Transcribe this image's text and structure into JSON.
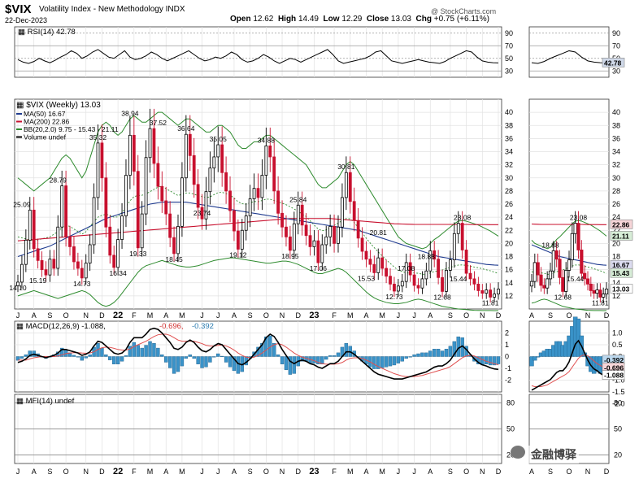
{
  "header": {
    "symbol": "$VIX",
    "name": "Volatility Index - New Methodology INDX",
    "date": "22-Dec-2023",
    "copyright": "@ StockCharts.com",
    "open_label": "Open",
    "open": "12.62",
    "high_label": "High",
    "high": "14.49",
    "low_label": "Low",
    "low": "12.29",
    "close_label": "Close",
    "close": "13.03",
    "chg_label": "Chg",
    "chg": "+0.75 (+6.11%)"
  },
  "colors": {
    "up": "#ffffff",
    "down": "#c8102e",
    "ma50": "#1f3b8f",
    "ma200": "#c8102e",
    "bb": "#2e8b2e",
    "macd_line": "#000000",
    "macd_signal": "#e05050",
    "hist": "#3a93c9",
    "grid": "#e2e2e2",
    "price_tag": "#c8102e"
  },
  "watermark": "金融博驿",
  "chart_data": [
    {
      "type": "line",
      "panel": "RSI",
      "label": "RSI(14) 42.78",
      "ylim": [
        20,
        100
      ],
      "y_ticks": [
        "90",
        "70",
        "50",
        "30"
      ],
      "right_tag": "42.78",
      "values": [
        48,
        44,
        42,
        45,
        50,
        46,
        43,
        47,
        52,
        56,
        62,
        58,
        50,
        54,
        60,
        64,
        58,
        52,
        50,
        56,
        62,
        52,
        48,
        50,
        54,
        60,
        56,
        50,
        46,
        50,
        54,
        58,
        62,
        56,
        50,
        46,
        48,
        52,
        50,
        54,
        60,
        56,
        48,
        44,
        46,
        50,
        56,
        52,
        46,
        42,
        46,
        50,
        48,
        44,
        48,
        52,
        56,
        60,
        64,
        56,
        46,
        42,
        44,
        46,
        48,
        50,
        54,
        60,
        62,
        54,
        46,
        44,
        42,
        44,
        46,
        48,
        46,
        44,
        43,
        42,
        45,
        50,
        54,
        58,
        62,
        60,
        52,
        46,
        44,
        43,
        42.78
      ]
    },
    {
      "type": "candlestick",
      "panel": "price",
      "label": "$VIX (Weekly) 13.03",
      "legend": [
        "MA(50) 16.67",
        "MA(200) 22.86",
        "BB(20,2.0) 9.75 - 15.43 - 21.11",
        "Volume undef"
      ],
      "ylim": [
        10,
        42
      ],
      "y_ticks": [
        "40",
        "38",
        "36",
        "34",
        "32",
        "30",
        "28",
        "26",
        "24",
        "22",
        "20",
        "18",
        "16",
        "14",
        "12"
      ],
      "x_labels": [
        "J",
        "A",
        "S",
        "O",
        "N",
        "D",
        "22",
        "F",
        "M",
        "A",
        "M",
        "J",
        "J",
        "A",
        "S",
        "O",
        "N",
        "D",
        "23",
        "F",
        "M",
        "A",
        "M",
        "J",
        "J",
        "A",
        "S",
        "O",
        "N",
        "D"
      ],
      "price_tags": [
        "22.86",
        "21.11",
        "16.67",
        "15.43",
        "13.03"
      ],
      "annotations": [
        {
          "text": "14.10",
          "x": 0,
          "y": 14.1
        },
        {
          "text": "25.09",
          "x": 1,
          "y": 25.09
        },
        {
          "text": "15.19",
          "x": 5,
          "y": 15.19
        },
        {
          "text": "28.79",
          "x": 10,
          "y": 28.79
        },
        {
          "text": "14.73",
          "x": 16,
          "y": 14.73
        },
        {
          "text": "35.32",
          "x": 20,
          "y": 35.32
        },
        {
          "text": "16.34",
          "x": 25,
          "y": 16.34
        },
        {
          "text": "38.94",
          "x": 28,
          "y": 38.94
        },
        {
          "text": "19.33",
          "x": 30,
          "y": 19.33
        },
        {
          "text": "37.52",
          "x": 35,
          "y": 37.52
        },
        {
          "text": "18.45",
          "x": 39,
          "y": 18.45
        },
        {
          "text": "36.64",
          "x": 42,
          "y": 36.64
        },
        {
          "text": "23.74",
          "x": 46,
          "y": 23.74
        },
        {
          "text": "35.05",
          "x": 50,
          "y": 35.05
        },
        {
          "text": "19.12",
          "x": 55,
          "y": 19.12
        },
        {
          "text": "34.88",
          "x": 62,
          "y": 34.88
        },
        {
          "text": "18.95",
          "x": 68,
          "y": 18.95
        },
        {
          "text": "25.84",
          "x": 70,
          "y": 25.84
        },
        {
          "text": "17.06",
          "x": 75,
          "y": 17.06
        },
        {
          "text": "30.81",
          "x": 82,
          "y": 30.81
        },
        {
          "text": "20.81",
          "x": 90,
          "y": 20.81
        },
        {
          "text": "15.53",
          "x": 87,
          "y": 15.53
        },
        {
          "text": "17.08",
          "x": 97,
          "y": 17.08
        },
        {
          "text": "12.73",
          "x": 94,
          "y": 12.73
        },
        {
          "text": "18.88",
          "x": 102,
          "y": 18.88
        },
        {
          "text": "12.68",
          "x": 106,
          "y": 12.68
        },
        {
          "text": "23.08",
          "x": 111,
          "y": 23.08
        },
        {
          "text": "15.44",
          "x": 110,
          "y": 15.44
        },
        {
          "text": "11.81",
          "x": 118,
          "y": 11.81
        }
      ],
      "closes": [
        14.1,
        16.8,
        20.5,
        25.09,
        19.2,
        17.4,
        16.0,
        15.19,
        17.6,
        16.2,
        22.5,
        28.79,
        21.0,
        19.5,
        17.2,
        16.2,
        14.73,
        17.0,
        19.8,
        27.0,
        35.32,
        30.0,
        22.5,
        18.2,
        16.34,
        20.6,
        24.2,
        30.4,
        36.5,
        31.0,
        19.33,
        24.5,
        33.1,
        37.52,
        32.2,
        28.7,
        26.5,
        24.5,
        20.9,
        18.45,
        22.6,
        30.0,
        36.64,
        33.4,
        29.0,
        25.5,
        23.74,
        27.9,
        31.5,
        33.2,
        35.05,
        30.8,
        28.0,
        25.0,
        21.9,
        19.12,
        22.0,
        24.2,
        26.8,
        28.4,
        27.0,
        30.4,
        34.88,
        33.2,
        28.0,
        24.6,
        22.5,
        21.0,
        18.95,
        23.0,
        25.84,
        22.8,
        21.2,
        19.5,
        20.4,
        17.06,
        19.8,
        21.0,
        22.6,
        20.0,
        22.5,
        27.0,
        30.81,
        26.4,
        23.5,
        20.81,
        18.8,
        17.6,
        16.8,
        15.53,
        17.8,
        16.2,
        15.0,
        13.8,
        12.73,
        13.5,
        14.2,
        17.08,
        15.2,
        13.6,
        13.2,
        14.6,
        15.8,
        18.88,
        17.6,
        14.8,
        12.68,
        15.9,
        17.5,
        21.5,
        23.08,
        19.0,
        15.44,
        14.6,
        13.8,
        12.8,
        12.4,
        12.9,
        11.81,
        12.28,
        13.03
      ],
      "ma50": [
        18.0,
        18.2,
        18.4,
        18.6,
        18.8,
        19.0,
        19.2,
        19.4,
        19.6,
        19.9,
        20.2,
        20.5,
        20.8,
        21.1,
        21.4,
        21.7,
        22.0,
        22.3,
        22.6,
        22.9,
        23.2,
        23.5,
        23.8,
        24.0,
        24.2,
        24.4,
        24.6,
        24.8,
        25.0,
        25.2,
        25.4,
        25.6,
        25.8,
        26.0,
        26.1,
        26.2,
        26.3,
        26.3,
        26.3,
        26.3,
        26.3,
        26.3,
        26.3,
        26.2,
        26.1,
        26.0,
        25.9,
        25.8,
        25.7,
        25.6,
        25.5,
        25.4,
        25.3,
        25.2,
        25.1,
        25.0,
        24.9,
        24.8,
        24.7,
        24.6,
        24.5,
        24.4,
        24.3,
        24.2,
        24.1,
        24.0,
        23.9,
        23.8,
        23.7,
        23.6,
        23.5,
        23.4,
        23.3,
        23.2,
        23.1,
        23.0,
        22.9,
        22.8,
        22.7,
        22.6,
        22.5,
        22.4,
        22.3,
        22.2,
        22.1,
        22.0,
        21.8,
        21.6,
        21.4,
        21.2,
        21.0,
        20.8,
        20.6,
        20.4,
        20.2,
        20.0,
        19.8,
        19.6,
        19.4,
        19.2,
        19.0,
        18.8,
        18.6,
        18.4,
        18.2,
        18.0,
        17.9,
        17.8,
        17.7,
        17.6,
        17.5,
        17.4,
        17.3,
        17.2,
        17.1,
        17.0,
        16.9,
        16.8,
        16.75,
        16.7,
        16.67
      ],
      "ma200": [
        20.4,
        20.45,
        20.5,
        20.55,
        20.6,
        20.65,
        20.7,
        20.75,
        20.8,
        20.85,
        20.9,
        20.95,
        21.0,
        21.05,
        21.1,
        21.15,
        21.2,
        21.25,
        21.3,
        21.35,
        21.4,
        21.45,
        21.5,
        21.55,
        21.6,
        21.65,
        21.7,
        21.75,
        21.8,
        21.85,
        21.9,
        21.95,
        22.0,
        22.05,
        22.1,
        22.15,
        22.2,
        22.25,
        22.3,
        22.35,
        22.4,
        22.45,
        22.5,
        22.55,
        22.6,
        22.65,
        22.7,
        22.75,
        22.8,
        22.85,
        22.9,
        22.95,
        23.0,
        23.05,
        23.1,
        23.15,
        23.2,
        23.25,
        23.3,
        23.35,
        23.4,
        23.45,
        23.5,
        23.55,
        23.6,
        23.65,
        23.7,
        23.75,
        23.8,
        23.8,
        23.8,
        23.8,
        23.8,
        23.8,
        23.8,
        23.8,
        23.8,
        23.8,
        23.8,
        23.75,
        23.7,
        23.65,
        23.6,
        23.55,
        23.5,
        23.45,
        23.4,
        23.35,
        23.3,
        23.25,
        23.2,
        23.15,
        23.1,
        23.05,
        23.0,
        22.98,
        22.96,
        22.94,
        22.92,
        22.9,
        22.9,
        22.9,
        22.9,
        22.9,
        22.9,
        22.9,
        22.9,
        22.9,
        22.9,
        22.9,
        22.9,
        22.9,
        22.9,
        22.89,
        22.88,
        22.88,
        22.87,
        22.87,
        22.86,
        22.86,
        22.86
      ],
      "bb_upper": [
        30,
        29.5,
        29,
        28.5,
        28,
        28.5,
        29,
        29.5,
        30,
        31,
        32,
        33,
        33.5,
        33,
        32,
        31,
        30,
        31,
        33,
        35,
        37,
        38,
        38.5,
        38,
        37,
        36.5,
        37,
        38,
        39,
        39.5,
        39,
        38.5,
        38.5,
        39,
        39.5,
        40,
        40,
        39.5,
        39,
        38.5,
        38,
        38.5,
        39,
        39,
        38.5,
        38,
        37.5,
        37,
        37,
        37.5,
        38,
        38,
        37.5,
        37,
        36,
        35,
        34.5,
        34.5,
        35,
        35.5,
        35.5,
        36,
        36.5,
        36.5,
        36,
        35.5,
        35,
        34.5,
        34,
        33.5,
        33,
        32.5,
        32,
        31,
        30,
        29,
        28.5,
        28.5,
        29,
        29.5,
        30,
        31,
        32,
        32.5,
        32,
        31,
        30,
        29,
        28,
        27,
        26,
        25,
        24,
        23,
        22,
        21,
        20.5,
        20,
        19.8,
        19.6,
        19.4,
        19.2,
        19.4,
        20,
        20.6,
        21,
        21.5,
        22,
        22.5,
        23,
        23.4,
        23.5,
        23.4,
        23.2,
        23,
        22.8,
        22.5,
        22.2,
        21.9,
        21.5,
        21.11
      ],
      "bb_lower": [
        12,
        12.2,
        12.4,
        12.6,
        12.8,
        12.6,
        12.4,
        12.2,
        12,
        11.8,
        11.6,
        11.8,
        12.0,
        12.2,
        12.4,
        12.6,
        12.8,
        12.6,
        12.2,
        11.6,
        11.0,
        10.6,
        10.4,
        10.6,
        11.0,
        11.6,
        12.4,
        13.2,
        14.0,
        14.8,
        15.6,
        16.2,
        16.6,
        16.8,
        17.0,
        17.2,
        17.4,
        17.2,
        17.0,
        16.8,
        16.6,
        16.5,
        16.4,
        16.4,
        16.5,
        16.6,
        16.8,
        17.0,
        17.2,
        17.4,
        17.5,
        17.6,
        17.7,
        17.8,
        17.8,
        17.7,
        17.6,
        17.5,
        17.4,
        17.3,
        17.2,
        17.1,
        17.0,
        17.0,
        17.1,
        17.2,
        17.3,
        17.3,
        17.2,
        17.0,
        16.8,
        16.5,
        16.2,
        15.9,
        15.6,
        15.4,
        15.4,
        15.6,
        15.8,
        16.0,
        16.2,
        16.0,
        15.6,
        15.0,
        14.4,
        13.8,
        13.2,
        12.6,
        12.1,
        11.7,
        11.4,
        11.2,
        11.0,
        10.9,
        10.8,
        10.8,
        10.9,
        11.0,
        11.2,
        11.4,
        11.5,
        11.4,
        11.2,
        11.0,
        10.8,
        10.6,
        10.4,
        10.3,
        10.2,
        10.1,
        10.0,
        9.95,
        9.9,
        9.85,
        9.8,
        9.78,
        9.77,
        9.76,
        9.76,
        9.75,
        9.75
      ]
    },
    {
      "type": "histogram",
      "panel": "MACD",
      "label": "MACD(12,26,9) -1.088, -0.696, -0.392",
      "label_parts": [
        "MACD(12,26,9) -1.088,",
        "-0.696,",
        "-0.392"
      ],
      "ylim": [
        -3,
        3
      ],
      "y_ticks": [
        "2",
        "1",
        "0",
        "-1",
        "-2"
      ],
      "right_tags": [
        "-0.392",
        "-0.696",
        "-1.088"
      ],
      "macd": [
        -0.5,
        -0.4,
        -0.2,
        0.1,
        0.2,
        0.1,
        0,
        -0.1,
        0,
        0.1,
        0.3,
        0.6,
        0.6,
        0.5,
        0.4,
        0.3,
        0.1,
        0.2,
        0.4,
        0.9,
        1.3,
        1.2,
        0.9,
        0.6,
        0.3,
        0.2,
        0.3,
        0.6,
        1.2,
        1.6,
        1.6,
        1.6,
        1.9,
        2.3,
        2.4,
        2.3,
        2.0,
        1.6,
        1.2,
        0.7,
        0.6,
        0.8,
        1.2,
        1.4,
        1.2,
        0.8,
        0.5,
        0.4,
        0.6,
        0.9,
        1.1,
        1.0,
        0.6,
        0.2,
        -0.2,
        -0.6,
        -0.7,
        -0.5,
        -0.2,
        0.2,
        0.6,
        1.0,
        1.6,
        1.9,
        1.7,
        1.2,
        0.6,
        0.1,
        -0.4,
        -0.6,
        -0.4,
        -0.3,
        -0.4,
        -0.6,
        -0.7,
        -0.9,
        -1.0,
        -0.8,
        -0.6,
        -0.6,
        -0.4,
        0,
        0.4,
        0.4,
        0.2,
        -0.1,
        -0.4,
        -0.7,
        -1.0,
        -1.3,
        -1.5,
        -1.6,
        -1.7,
        -1.8,
        -1.9,
        -1.9,
        -1.9,
        -1.8,
        -1.7,
        -1.6,
        -1.5,
        -1.4,
        -1.3,
        -1.1,
        -0.9,
        -0.8,
        -0.8,
        -0.6,
        -0.3,
        0.2,
        0.7,
        0.9,
        0.6,
        0.2,
        -0.2,
        -0.5,
        -0.7,
        -0.8,
        -0.95,
        -1.05,
        -1.088
      ],
      "signal": [
        -0.3,
        -0.3,
        -0.3,
        -0.2,
        -0.1,
        -0.05,
        0,
        0,
        0,
        0,
        0.05,
        0.15,
        0.25,
        0.3,
        0.33,
        0.33,
        0.3,
        0.28,
        0.3,
        0.4,
        0.6,
        0.75,
        0.8,
        0.78,
        0.7,
        0.6,
        0.55,
        0.55,
        0.65,
        0.85,
        1.0,
        1.15,
        1.3,
        1.5,
        1.7,
        1.85,
        1.9,
        1.9,
        1.8,
        1.6,
        1.4,
        1.3,
        1.3,
        1.3,
        1.3,
        1.2,
        1.1,
        0.95,
        0.9,
        0.9,
        0.95,
        0.98,
        0.9,
        0.75,
        0.55,
        0.3,
        0.1,
        -0.05,
        -0.1,
        -0.05,
        0.1,
        0.3,
        0.55,
        0.8,
        1.0,
        1.1,
        1.0,
        0.8,
        0.55,
        0.3,
        0.1,
        -0.05,
        -0.15,
        -0.25,
        -0.35,
        -0.5,
        -0.6,
        -0.65,
        -0.65,
        -0.65,
        -0.6,
        -0.5,
        -0.3,
        -0.15,
        -0.1,
        -0.1,
        -0.15,
        -0.3,
        -0.45,
        -0.65,
        -0.85,
        -1.0,
        -1.15,
        -1.3,
        -1.45,
        -1.55,
        -1.65,
        -1.7,
        -1.7,
        -1.7,
        -1.65,
        -1.6,
        -1.5,
        -1.4,
        -1.3,
        -1.2,
        -1.1,
        -1.0,
        -0.85,
        -0.6,
        -0.35,
        -0.1,
        0.05,
        0.1,
        0.05,
        -0.1,
        -0.25,
        -0.4,
        -0.5,
        -0.6,
        -0.696
      ]
    },
    {
      "type": "line",
      "panel": "MFI",
      "label": "MFI(14) undef",
      "ylim": [
        10,
        90
      ],
      "y_ticks": [
        "80",
        "50",
        "20"
      ],
      "values": []
    }
  ]
}
